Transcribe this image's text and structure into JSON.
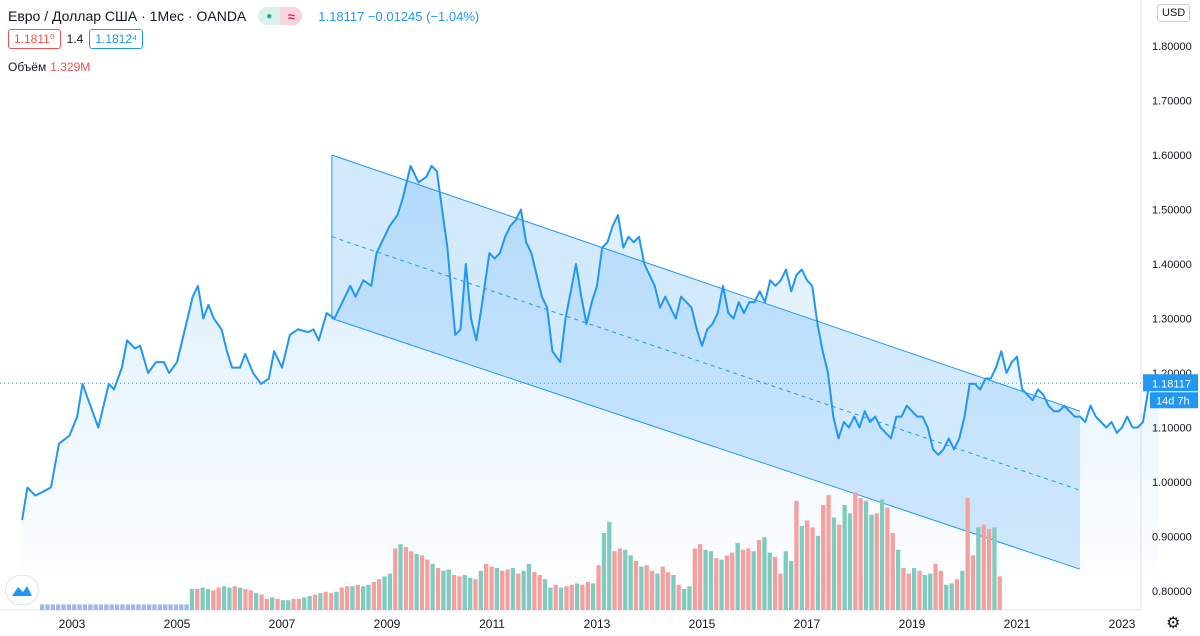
{
  "header": {
    "symbol": "Евро / Доллар США · 1Мес · OANDA",
    "dot_icon": "●",
    "wave_icon": "≈",
    "quote": "1.18117  −0.01245 (−1.04%)"
  },
  "trade": {
    "sell": "1.1811⁰",
    "spread": "1.4",
    "buy": "1.1812⁴"
  },
  "volume": {
    "label": "Объём",
    "value": "1.329M"
  },
  "currency_button": "USD",
  "last_price_label": "1.18117",
  "countdown_label": "14d 7h",
  "colors": {
    "line": "#2196f3",
    "channel_fill": "#bbdefb",
    "vol_up": "#7fcbbf",
    "vol_down": "#f4a09e",
    "axis_text": "#131722"
  },
  "icons": {
    "logo": "tradingview-logo-icon",
    "settings": "gear-icon"
  },
  "chart_data": {
    "type": "line",
    "title": "",
    "xlabel": "",
    "ylabel": "",
    "ylim": [
      0.77,
      1.85
    ],
    "xlim": [
      2002.0,
      2023.5
    ],
    "x_ticks": [
      "2003",
      "2005",
      "2007",
      "2009",
      "2011",
      "2013",
      "2015",
      "2017",
      "2019",
      "2021",
      "2023"
    ],
    "y_ticks": [
      "0.80000",
      "0.90000",
      "1.00000",
      "1.10000",
      "1.20000",
      "1.30000",
      "1.40000",
      "1.50000",
      "1.60000",
      "1.70000",
      "1.80000"
    ],
    "series": [
      {
        "type": "line",
        "points": [
          [
            2002.05,
            0.93
          ],
          [
            2002.15,
            0.99
          ],
          [
            2002.3,
            0.975
          ],
          [
            2002.6,
            0.99
          ],
          [
            2002.75,
            1.07
          ],
          [
            2002.95,
            1.085
          ],
          [
            2003.1,
            1.12
          ],
          [
            2003.2,
            1.18
          ],
          [
            2003.35,
            1.14
          ],
          [
            2003.5,
            1.1
          ],
          [
            2003.7,
            1.18
          ],
          [
            2003.8,
            1.17
          ],
          [
            2003.95,
            1.21
          ],
          [
            2004.05,
            1.26
          ],
          [
            2004.2,
            1.245
          ],
          [
            2004.3,
            1.25
          ],
          [
            2004.45,
            1.2
          ],
          [
            2004.6,
            1.22
          ],
          [
            2004.75,
            1.22
          ],
          [
            2004.85,
            1.2
          ],
          [
            2005.0,
            1.22
          ],
          [
            2005.15,
            1.28
          ],
          [
            2005.3,
            1.34
          ],
          [
            2005.4,
            1.36
          ],
          [
            2005.5,
            1.3
          ],
          [
            2005.6,
            1.325
          ],
          [
            2005.7,
            1.3
          ],
          [
            2005.85,
            1.28
          ],
          [
            2005.95,
            1.24
          ],
          [
            2006.05,
            1.21
          ],
          [
            2006.2,
            1.21
          ],
          [
            2006.3,
            1.235
          ],
          [
            2006.45,
            1.2
          ],
          [
            2006.6,
            1.18
          ],
          [
            2006.75,
            1.19
          ],
          [
            2006.85,
            1.24
          ],
          [
            2007.0,
            1.21
          ],
          [
            2007.15,
            1.27
          ],
          [
            2007.3,
            1.28
          ],
          [
            2007.5,
            1.275
          ],
          [
            2007.6,
            1.28
          ],
          [
            2007.7,
            1.26
          ],
          [
            2007.85,
            1.31
          ],
          [
            2008.0,
            1.3
          ],
          [
            2008.15,
            1.33
          ],
          [
            2008.3,
            1.36
          ],
          [
            2008.4,
            1.34
          ],
          [
            2008.55,
            1.37
          ],
          [
            2008.7,
            1.36
          ],
          [
            2008.8,
            1.42
          ],
          [
            2008.95,
            1.45
          ],
          [
            2009.05,
            1.47
          ],
          [
            2009.2,
            1.49
          ],
          [
            2009.3,
            1.52
          ],
          [
            2009.45,
            1.58
          ],
          [
            2009.6,
            1.55
          ],
          [
            2009.75,
            1.56
          ],
          [
            2009.85,
            1.58
          ],
          [
            2009.95,
            1.57
          ],
          [
            2010.05,
            1.5
          ],
          [
            2010.15,
            1.43
          ],
          [
            2010.3,
            1.27
          ],
          [
            2010.4,
            1.28
          ],
          [
            2010.5,
            1.4
          ],
          [
            2010.6,
            1.3
          ],
          [
            2010.7,
            1.26
          ],
          [
            2010.8,
            1.32
          ],
          [
            2010.95,
            1.42
          ],
          [
            2011.05,
            1.41
          ],
          [
            2011.15,
            1.42
          ],
          [
            2011.25,
            1.45
          ],
          [
            2011.35,
            1.47
          ],
          [
            2011.45,
            1.48
          ],
          [
            2011.55,
            1.5
          ],
          [
            2011.65,
            1.44
          ],
          [
            2011.75,
            1.42
          ],
          [
            2011.85,
            1.38
          ],
          [
            2011.95,
            1.34
          ],
          [
            2012.05,
            1.32
          ],
          [
            2012.15,
            1.24
          ],
          [
            2012.3,
            1.22
          ],
          [
            2012.4,
            1.3
          ],
          [
            2012.5,
            1.35
          ],
          [
            2012.6,
            1.4
          ],
          [
            2012.7,
            1.34
          ],
          [
            2012.8,
            1.29
          ],
          [
            2012.9,
            1.33
          ],
          [
            2013.0,
            1.36
          ],
          [
            2013.1,
            1.43
          ],
          [
            2013.2,
            1.44
          ],
          [
            2013.3,
            1.47
          ],
          [
            2013.4,
            1.49
          ],
          [
            2013.5,
            1.43
          ],
          [
            2013.6,
            1.45
          ],
          [
            2013.7,
            1.44
          ],
          [
            2013.8,
            1.45
          ],
          [
            2013.9,
            1.4
          ],
          [
            2014.0,
            1.38
          ],
          [
            2014.1,
            1.36
          ],
          [
            2014.2,
            1.32
          ],
          [
            2014.3,
            1.34
          ],
          [
            2014.4,
            1.32
          ],
          [
            2014.5,
            1.3
          ],
          [
            2014.6,
            1.34
          ],
          [
            2014.7,
            1.33
          ],
          [
            2014.8,
            1.32
          ],
          [
            2014.9,
            1.28
          ],
          [
            2015.0,
            1.25
          ],
          [
            2015.1,
            1.28
          ],
          [
            2015.2,
            1.29
          ],
          [
            2015.3,
            1.31
          ],
          [
            2015.4,
            1.36
          ],
          [
            2015.5,
            1.31
          ],
          [
            2015.6,
            1.3
          ],
          [
            2015.7,
            1.33
          ],
          [
            2015.8,
            1.31
          ],
          [
            2015.9,
            1.33
          ],
          [
            2016.0,
            1.33
          ],
          [
            2016.1,
            1.35
          ],
          [
            2016.2,
            1.33
          ],
          [
            2016.3,
            1.37
          ],
          [
            2016.4,
            1.36
          ],
          [
            2016.5,
            1.37
          ],
          [
            2016.6,
            1.39
          ],
          [
            2016.7,
            1.35
          ],
          [
            2016.8,
            1.38
          ],
          [
            2016.9,
            1.39
          ],
          [
            2017.0,
            1.37
          ],
          [
            2017.1,
            1.36
          ],
          [
            2017.2,
            1.29
          ],
          [
            2017.3,
            1.24
          ],
          [
            2017.4,
            1.2
          ],
          [
            2017.5,
            1.12
          ],
          [
            2017.6,
            1.08
          ],
          [
            2017.7,
            1.11
          ],
          [
            2017.8,
            1.1
          ],
          [
            2017.9,
            1.12
          ],
          [
            2018.0,
            1.1
          ],
          [
            2018.1,
            1.13
          ],
          [
            2018.2,
            1.11
          ],
          [
            2018.3,
            1.12
          ],
          [
            2018.4,
            1.1
          ],
          [
            2018.5,
            1.09
          ],
          [
            2018.6,
            1.08
          ],
          [
            2018.7,
            1.12
          ],
          [
            2018.8,
            1.12
          ],
          [
            2018.9,
            1.14
          ],
          [
            2019.0,
            1.13
          ],
          [
            2019.1,
            1.12
          ],
          [
            2019.2,
            1.12
          ],
          [
            2019.3,
            1.1
          ],
          [
            2019.4,
            1.06
          ],
          [
            2019.5,
            1.05
          ],
          [
            2019.6,
            1.06
          ],
          [
            2019.7,
            1.08
          ],
          [
            2019.8,
            1.06
          ],
          [
            2019.9,
            1.08
          ],
          [
            2020.0,
            1.12
          ],
          [
            2020.1,
            1.18
          ],
          [
            2020.2,
            1.18
          ],
          [
            2020.3,
            1.17
          ],
          [
            2020.4,
            1.19
          ],
          [
            2020.5,
            1.19
          ],
          [
            2020.6,
            1.21
          ],
          [
            2020.7,
            1.24
          ],
          [
            2020.8,
            1.2
          ],
          [
            2020.9,
            1.22
          ],
          [
            2021.0,
            1.23
          ],
          [
            2021.1,
            1.17
          ],
          [
            2021.2,
            1.16
          ],
          [
            2021.3,
            1.15
          ],
          [
            2021.4,
            1.17
          ],
          [
            2021.5,
            1.16
          ],
          [
            2021.6,
            1.14
          ],
          [
            2021.7,
            1.13
          ],
          [
            2021.8,
            1.13
          ],
          [
            2021.9,
            1.14
          ],
          [
            2022.0,
            1.13
          ],
          [
            2022.1,
            1.12
          ],
          [
            2022.2,
            1.12
          ],
          [
            2022.3,
            1.11
          ],
          [
            2022.4,
            1.14
          ],
          [
            2022.5,
            1.12
          ],
          [
            2022.6,
            1.11
          ],
          [
            2022.7,
            1.1
          ],
          [
            2022.8,
            1.11
          ],
          [
            2022.9,
            1.09
          ],
          [
            2023.0,
            1.1
          ],
          [
            2023.1,
            1.12
          ],
          [
            2023.2,
            1.1
          ],
          [
            2023.3,
            1.1
          ],
          [
            2023.4,
            1.11
          ],
          [
            2023.5,
            1.17
          ],
          [
            2023.6,
            1.19
          ],
          [
            2023.7,
            1.18
          ]
        ]
      }
    ],
    "channel": {
      "upper": [
        [
          2007.95,
          1.6
        ],
        [
          2022.2,
          1.13
        ]
      ],
      "middle": [
        [
          2007.95,
          1.45
        ],
        [
          2022.2,
          0.985
        ]
      ],
      "lower": [
        [
          2007.95,
          1.3
        ],
        [
          2022.2,
          0.84
        ]
      ]
    },
    "volume_bars": [
      0.04,
      0.04,
      0.04,
      0.04,
      0.04,
      0.04,
      0.04,
      0.04,
      0.04,
      0.04,
      0.04,
      0.04,
      0.04,
      0.04,
      0.04,
      0.04,
      0.04,
      0.04,
      0.04,
      0.04,
      0.04,
      0.04,
      0.04,
      0.04,
      0.04,
      0.04,
      0.04,
      0.04,
      0.15,
      0.15,
      0.16,
      0.15,
      0.14,
      0.16,
      0.17,
      0.16,
      0.17,
      0.16,
      0.15,
      0.14,
      0.12,
      0.11,
      0.08,
      0.09,
      0.08,
      0.07,
      0.07,
      0.08,
      0.08,
      0.09,
      0.1,
      0.11,
      0.12,
      0.13,
      0.12,
      0.13,
      0.16,
      0.17,
      0.17,
      0.18,
      0.17,
      0.18,
      0.2,
      0.22,
      0.24,
      0.26,
      0.44,
      0.47,
      0.45,
      0.42,
      0.4,
      0.39,
      0.36,
      0.33,
      0.3,
      0.28,
      0.29,
      0.25,
      0.24,
      0.25,
      0.23,
      0.22,
      0.28,
      0.33,
      0.31,
      0.3,
      0.28,
      0.29,
      0.3,
      0.26,
      0.28,
      0.33,
      0.27,
      0.25,
      0.22,
      0.16,
      0.18,
      0.16,
      0.17,
      0.18,
      0.19,
      0.18,
      0.2,
      0.19,
      0.32,
      0.55,
      0.63,
      0.42,
      0.44,
      0.43,
      0.39,
      0.35,
      0.31,
      0.32,
      0.28,
      0.26,
      0.31,
      0.27,
      0.25,
      0.18,
      0.15,
      0.17,
      0.44,
      0.47,
      0.43,
      0.42,
      0.37,
      0.36,
      0.39,
      0.41,
      0.48,
      0.43,
      0.44,
      0.42,
      0.5,
      0.52,
      0.41,
      0.38,
      0.26,
      0.42,
      0.35,
      0.78,
      0.6,
      0.64,
      0.59,
      0.53,
      0.75,
      0.82,
      0.66,
      0.61,
      0.75,
      0.69,
      0.84,
      0.8,
      0.78,
      0.68,
      0.69,
      0.79,
      0.73,
      0.55,
      0.43,
      0.3,
      0.26,
      0.3,
      0.28,
      0.25,
      0.26,
      0.33,
      0.28,
      0.18,
      0.19,
      0.22,
      0.28,
      0.8,
      0.39,
      0.59,
      0.61,
      0.58,
      0.59,
      0.24
    ],
    "volume_colors": "alternating_by_direction"
  }
}
